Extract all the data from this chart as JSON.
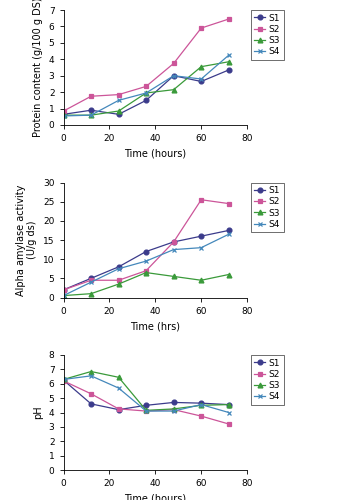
{
  "time": [
    0,
    12,
    24,
    36,
    48,
    60,
    72
  ],
  "protein_S1": [
    0.65,
    0.9,
    0.65,
    1.5,
    3.0,
    2.65,
    3.35
  ],
  "protein_S2": [
    0.85,
    1.75,
    1.85,
    2.35,
    3.75,
    5.9,
    6.45
  ],
  "protein_S3": [
    0.6,
    0.6,
    0.85,
    1.95,
    2.15,
    3.55,
    3.85
  ],
  "protein_S4": [
    0.55,
    0.6,
    1.5,
    1.95,
    3.0,
    2.8,
    4.25
  ],
  "amylase_S1": [
    2.0,
    5.0,
    8.0,
    12.0,
    14.5,
    16.0,
    17.5
  ],
  "amylase_S2": [
    2.0,
    4.5,
    4.5,
    7.0,
    14.5,
    25.5,
    24.5
  ],
  "amylase_S3": [
    0.5,
    1.0,
    3.5,
    6.5,
    5.5,
    4.5,
    6.0
  ],
  "amylase_S4": [
    0.5,
    4.0,
    7.5,
    9.5,
    12.5,
    13.0,
    16.5
  ],
  "ph_S1": [
    6.25,
    4.6,
    4.2,
    4.5,
    4.7,
    4.65,
    4.55
  ],
  "ph_S2": [
    6.2,
    5.3,
    4.25,
    4.1,
    4.2,
    3.75,
    3.2
  ],
  "ph_S3": [
    6.3,
    6.85,
    6.45,
    4.15,
    4.25,
    4.5,
    4.55
  ],
  "ph_S4": [
    6.3,
    6.55,
    5.7,
    4.1,
    4.1,
    4.55,
    4.0
  ],
  "color_S1": "#3b3b8b",
  "color_S2": "#cc5599",
  "color_S3": "#3a9a3a",
  "color_S4": "#4488bb",
  "marker_S1": "o",
  "marker_S2": "s",
  "marker_S3": "^",
  "marker_S4": "x",
  "xlim": [
    0,
    80
  ],
  "protein_ylim": [
    0,
    7
  ],
  "amylase_ylim": [
    0,
    30
  ],
  "ph_ylim": [
    0,
    8
  ],
  "protein_ylabel": "Protein content (g/100 g DS)",
  "amylase_ylabel": "Alpha amylase activity\n(U/g ds)",
  "ph_ylabel": "pH",
  "protein_xlabel": "Time (hours)",
  "amylase_xlabel": "Time (hrs)",
  "ph_xlabel": "Time (hours)",
  "legend_labels": [
    "S1",
    "S2",
    "S3",
    "S4"
  ],
  "legend_fontsize": 6.5,
  "axis_fontsize": 7,
  "tick_fontsize": 6.5
}
